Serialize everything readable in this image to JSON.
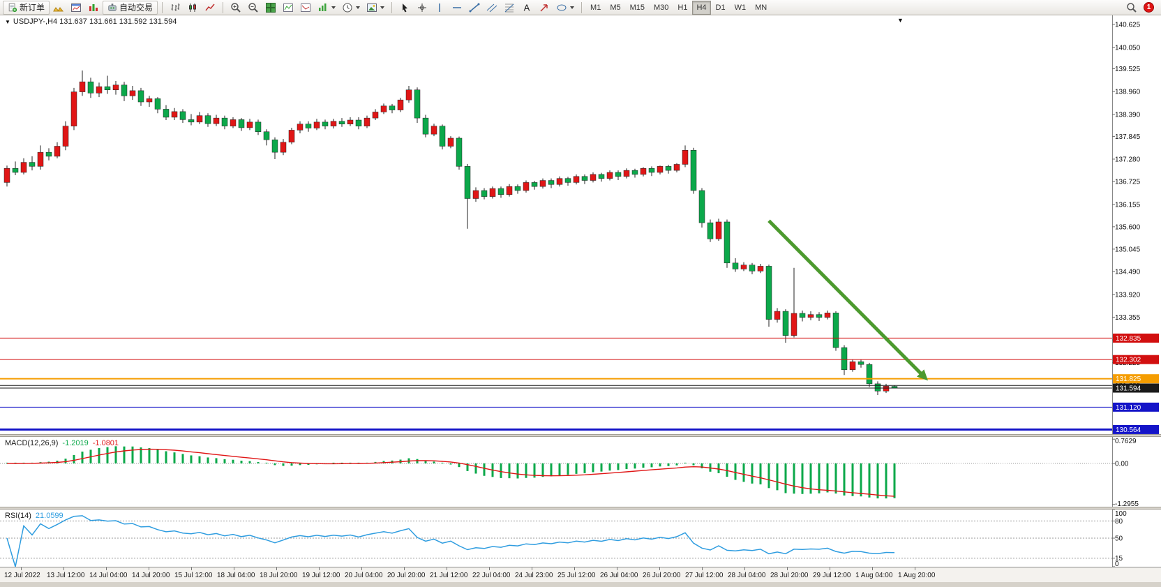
{
  "toolbar": {
    "new_order": "新订单",
    "auto_trading": "自动交易",
    "timeframes": [
      "M1",
      "M5",
      "M15",
      "M30",
      "H1",
      "H4",
      "D1",
      "W1",
      "MN"
    ],
    "active_timeframe": "H4",
    "notification_count": "1"
  },
  "chart": {
    "title": "USDJPY-,H4 131.637 131.661 131.592 131.594",
    "symbol": "USDJPY-",
    "period": "H4",
    "ohlc": {
      "open": "131.637",
      "high": "131.661",
      "low": "131.592",
      "close": "131.594"
    }
  },
  "colors": {
    "up": "#e01616",
    "down": "#0ba84a",
    "macd_hist": "#0ba84a",
    "macd_signal": "#e01616",
    "rsi": "#2f9de0",
    "arrow": "#4c9a2e"
  },
  "price_axis": {
    "values": [
      140.625,
      140.05,
      139.525,
      138.96,
      138.39,
      137.845,
      137.28,
      136.725,
      136.155,
      135.6,
      135.045,
      134.49,
      133.92,
      133.355,
      132.79,
      132.225,
      131.66,
      131.095,
      130.53
    ]
  },
  "hlines": [
    {
      "price": 132.835,
      "label": "132.835",
      "color": "#d20f0f",
      "width": 1,
      "badge": true
    },
    {
      "price": 132.302,
      "label": "132.302",
      "color": "#d20f0f",
      "width": 1,
      "badge": true
    },
    {
      "price": 131.825,
      "label": "131.825",
      "color": "#f59d00",
      "width": 2,
      "badge": true
    },
    {
      "price": 131.66,
      "label": "",
      "color": "#1a1a1a",
      "width": 1,
      "badge": false
    },
    {
      "price": 131.594,
      "label": "131.594",
      "color": "#1a1a1a",
      "width": 1,
      "badge": true
    },
    {
      "price": 131.12,
      "label": "131.120",
      "color": "#1414c8",
      "width": 1,
      "badge": true
    },
    {
      "price": 130.564,
      "label": "130.564",
      "color": "#1414c8",
      "width": 3,
      "badge": true
    }
  ],
  "macd": {
    "name": "MACD(12,26,9)",
    "main_value": "-1.2019",
    "signal_value": "-1.0801",
    "axis_labels": [
      "0.7629",
      "0.00",
      "-1.2955"
    ],
    "axis_values": [
      0.7629,
      0,
      -1.2955
    ]
  },
  "rsi": {
    "name": "RSI(14)",
    "value": "21.0599",
    "axis_labels": [
      "100",
      "80",
      "50",
      "15",
      "0"
    ],
    "axis_values": [
      100,
      80,
      50,
      15,
      0
    ],
    "level_lines": [
      80,
      50,
      15
    ]
  },
  "time_axis": [
    "12 Jul 2022",
    "13 Jul 12:00",
    "14 Jul 04:00",
    "14 Jul 20:00",
    "15 Jul 12:00",
    "18 Jul 04:00",
    "18 Jul 20:00",
    "19 Jul 12:00",
    "20 Jul 04:00",
    "20 Jul 20:00",
    "21 Jul 12:00",
    "22 Jul 04:00",
    "24 Jul 23:00",
    "25 Jul 12:00",
    "26 Jul 04:00",
    "26 Jul 20:00",
    "27 Jul 12:00",
    "28 Jul 04:00",
    "28 Jul 20:00",
    "29 Jul 12:00",
    "1 Aug 04:00",
    "1 Aug 20:00"
  ],
  "chart_data": {
    "type": "candlestick",
    "symbol": "USDJPY",
    "timeframe": "H4",
    "note": "Chinese color convention: red = bullish (close>open), green = bearish",
    "candles": [
      [
        136.7,
        137.12,
        136.6,
        137.05
      ],
      [
        137.05,
        137.22,
        136.88,
        136.95
      ],
      [
        136.95,
        137.3,
        136.9,
        137.2
      ],
      [
        137.2,
        137.35,
        137.0,
        137.1
      ],
      [
        137.1,
        137.62,
        137.02,
        137.45
      ],
      [
        137.45,
        137.55,
        137.25,
        137.35
      ],
      [
        137.35,
        137.7,
        137.3,
        137.6
      ],
      [
        137.6,
        138.22,
        137.5,
        138.1
      ],
      [
        138.1,
        139.05,
        138.0,
        138.95
      ],
      [
        138.95,
        139.48,
        138.85,
        139.2
      ],
      [
        139.2,
        139.3,
        138.8,
        138.92
      ],
      [
        138.92,
        139.18,
        138.82,
        139.08
      ],
      [
        139.08,
        139.35,
        138.9,
        139.0
      ],
      [
        139.0,
        139.22,
        138.88,
        139.12
      ],
      [
        139.12,
        139.2,
        138.72,
        138.85
      ],
      [
        138.85,
        139.1,
        138.75,
        138.98
      ],
      [
        138.98,
        139.05,
        138.6,
        138.7
      ],
      [
        138.7,
        138.85,
        138.58,
        138.78
      ],
      [
        138.78,
        138.82,
        138.42,
        138.52
      ],
      [
        138.52,
        138.62,
        138.25,
        138.32
      ],
      [
        138.32,
        138.55,
        138.25,
        138.46
      ],
      [
        138.46,
        138.52,
        138.18,
        138.26
      ],
      [
        138.26,
        138.4,
        138.12,
        138.2
      ],
      [
        138.2,
        138.45,
        138.15,
        138.36
      ],
      [
        138.36,
        138.42,
        138.08,
        138.16
      ],
      [
        138.16,
        138.38,
        138.1,
        138.3
      ],
      [
        138.3,
        138.36,
        138.02,
        138.1
      ],
      [
        138.1,
        138.32,
        138.05,
        138.26
      ],
      [
        138.26,
        138.3,
        137.98,
        138.06
      ],
      [
        138.06,
        138.28,
        138.0,
        138.2
      ],
      [
        138.2,
        138.26,
        137.88,
        137.96
      ],
      [
        137.96,
        138.02,
        137.62,
        137.76
      ],
      [
        137.76,
        137.82,
        137.28,
        137.45
      ],
      [
        137.45,
        137.78,
        137.38,
        137.7
      ],
      [
        137.7,
        138.06,
        137.65,
        138.0
      ],
      [
        138.0,
        138.22,
        137.92,
        138.15
      ],
      [
        138.15,
        138.22,
        137.96,
        138.05
      ],
      [
        138.05,
        138.28,
        138.0,
        138.2
      ],
      [
        138.2,
        138.26,
        138.02,
        138.1
      ],
      [
        138.1,
        138.28,
        138.04,
        138.22
      ],
      [
        138.22,
        138.3,
        138.08,
        138.15
      ],
      [
        138.15,
        138.32,
        138.1,
        138.25
      ],
      [
        138.25,
        138.32,
        138.02,
        138.1
      ],
      [
        138.1,
        138.36,
        138.05,
        138.3
      ],
      [
        138.3,
        138.52,
        138.25,
        138.45
      ],
      [
        138.45,
        138.66,
        138.4,
        138.6
      ],
      [
        138.6,
        138.65,
        138.42,
        138.5
      ],
      [
        138.5,
        138.8,
        138.45,
        138.75
      ],
      [
        138.75,
        139.1,
        138.68,
        139.0
      ],
      [
        139.0,
        139.06,
        138.18,
        138.3
      ],
      [
        138.3,
        138.38,
        137.82,
        137.9
      ],
      [
        137.9,
        138.16,
        137.85,
        138.1
      ],
      [
        138.1,
        138.14,
        137.52,
        137.6
      ],
      [
        137.6,
        137.85,
        137.55,
        137.8
      ],
      [
        137.8,
        137.84,
        137.02,
        137.1
      ],
      [
        137.1,
        137.16,
        135.55,
        136.3
      ],
      [
        136.3,
        136.58,
        136.22,
        136.5
      ],
      [
        136.5,
        136.56,
        136.28,
        136.35
      ],
      [
        136.35,
        136.6,
        136.3,
        136.55
      ],
      [
        136.55,
        136.6,
        136.32,
        136.4
      ],
      [
        136.4,
        136.66,
        136.35,
        136.6
      ],
      [
        136.6,
        136.65,
        136.42,
        136.5
      ],
      [
        136.5,
        136.75,
        136.45,
        136.7
      ],
      [
        136.7,
        136.74,
        136.52,
        136.6
      ],
      [
        136.6,
        136.8,
        136.55,
        136.75
      ],
      [
        136.75,
        136.8,
        136.56,
        136.65
      ],
      [
        136.65,
        136.85,
        136.6,
        136.8
      ],
      [
        136.8,
        136.84,
        136.62,
        136.7
      ],
      [
        136.7,
        136.9,
        136.65,
        136.85
      ],
      [
        136.85,
        136.9,
        136.66,
        136.75
      ],
      [
        136.75,
        136.95,
        136.7,
        136.9
      ],
      [
        136.9,
        136.94,
        136.72,
        136.8
      ],
      [
        136.8,
        137.0,
        136.75,
        136.95
      ],
      [
        136.95,
        137.0,
        136.76,
        136.85
      ],
      [
        136.85,
        137.05,
        136.8,
        137.0
      ],
      [
        137.0,
        137.04,
        136.82,
        136.9
      ],
      [
        136.9,
        137.08,
        136.85,
        137.05
      ],
      [
        137.05,
        137.1,
        136.86,
        136.95
      ],
      [
        136.95,
        137.12,
        136.9,
        137.1
      ],
      [
        137.1,
        137.14,
        136.92,
        137.0
      ],
      [
        137.0,
        137.18,
        136.95,
        137.15
      ],
      [
        137.15,
        137.62,
        137.08,
        137.5
      ],
      [
        137.5,
        137.56,
        136.42,
        136.5
      ],
      [
        136.5,
        136.56,
        135.58,
        135.7
      ],
      [
        135.7,
        135.78,
        135.22,
        135.3
      ],
      [
        135.3,
        135.8,
        135.25,
        135.72
      ],
      [
        135.72,
        135.78,
        134.58,
        134.7
      ],
      [
        134.7,
        134.82,
        134.48,
        134.55
      ],
      [
        134.55,
        134.72,
        134.5,
        134.65
      ],
      [
        134.65,
        134.7,
        134.42,
        134.5
      ],
      [
        134.5,
        134.68,
        134.45,
        134.62
      ],
      [
        134.62,
        134.66,
        133.12,
        133.3
      ],
      [
        133.3,
        133.58,
        133.22,
        133.5
      ],
      [
        133.5,
        133.55,
        132.72,
        132.9
      ],
      [
        132.9,
        134.58,
        132.85,
        133.45
      ],
      [
        133.45,
        133.52,
        133.25,
        133.35
      ],
      [
        133.35,
        133.5,
        133.28,
        133.42
      ],
      [
        133.42,
        133.48,
        133.26,
        133.35
      ],
      [
        133.35,
        133.52,
        133.3,
        133.46
      ],
      [
        133.46,
        133.5,
        132.52,
        132.6
      ],
      [
        132.6,
        132.66,
        131.92,
        132.05
      ],
      [
        132.05,
        132.3,
        132.0,
        132.25
      ],
      [
        132.25,
        132.3,
        132.1,
        132.18
      ],
      [
        132.18,
        132.22,
        131.62,
        131.7
      ],
      [
        131.7,
        131.76,
        131.42,
        131.52
      ],
      [
        131.52,
        131.7,
        131.47,
        131.64
      ],
      [
        131.637,
        131.661,
        131.592,
        131.594
      ]
    ],
    "annotations": {
      "trend_arrow": {
        "from": {
          "bar": 91,
          "price": 135.75
        },
        "to": {
          "bar": 110,
          "price": 131.78
        },
        "color": "green"
      }
    }
  }
}
